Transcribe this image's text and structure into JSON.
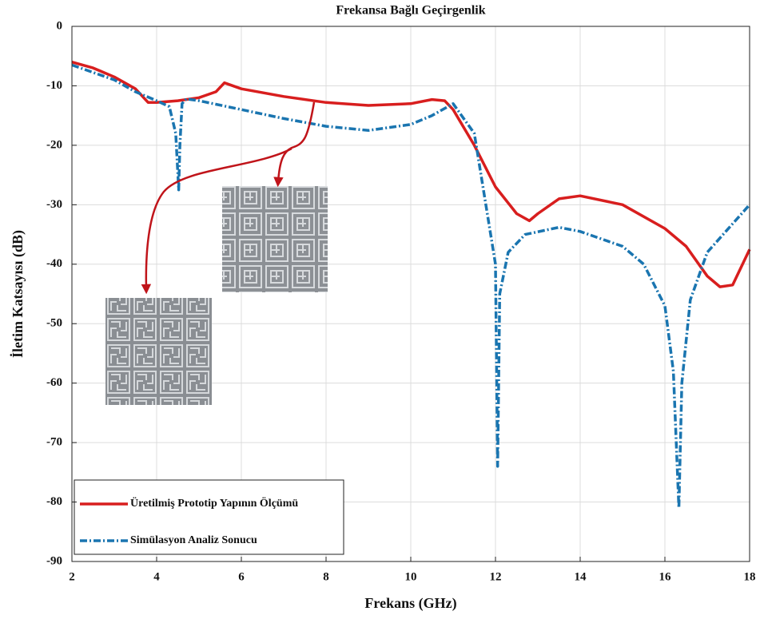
{
  "chart_data": {
    "type": "line",
    "title": "Frekansa Bağlı Geçirgenlik",
    "xlabel": "Frekans (GHz)",
    "ylabel": "İletim Katsayısı (dB)",
    "xlim": [
      2,
      18
    ],
    "ylim": [
      -90,
      0
    ],
    "xticks": [
      2,
      4,
      6,
      8,
      10,
      12,
      14,
      16,
      18
    ],
    "yticks": [
      -90,
      -80,
      -70,
      -60,
      -50,
      -40,
      -30,
      -20,
      -10,
      0
    ],
    "grid": true,
    "legend": "lower-left",
    "series": [
      {
        "name": "Üretilmiş Prototip Yapının Ölçümü",
        "color": "#d81e1e",
        "style": "solid",
        "x": [
          2,
          2.5,
          3,
          3.5,
          3.8,
          4,
          4.5,
          5,
          5.4,
          5.6,
          6,
          7,
          8,
          9,
          10,
          10.5,
          10.8,
          11,
          11.5,
          12,
          12.5,
          12.8,
          13,
          13.5,
          14,
          15,
          16,
          16.5,
          17,
          17.3,
          17.6,
          18
        ],
        "values": [
          -6,
          -7,
          -8.5,
          -10.5,
          -12.8,
          -12.8,
          -12.5,
          -12,
          -11,
          -9.5,
          -10.5,
          -11.8,
          -12.8,
          -13.3,
          -13,
          -12.3,
          -12.5,
          -14,
          -20,
          -27,
          -31.5,
          -32.7,
          -31.5,
          -29,
          -28.5,
          -30,
          -34,
          -37,
          -42,
          -43.8,
          -43.5,
          -37.5
        ]
      },
      {
        "name": "Simülasyon Analiz Sonucu",
        "color": "#1a75b0",
        "style": "dashdot",
        "x": [
          2,
          3,
          3.5,
          4,
          4.3,
          4.45,
          4.52,
          4.55,
          4.6,
          4.7,
          5,
          6,
          7,
          8,
          9,
          10,
          10.5,
          11,
          11.5,
          12,
          12.05,
          12.1,
          12.3,
          12.7,
          13.5,
          14,
          15,
          15.5,
          16,
          16.2,
          16.33,
          16.4,
          16.6,
          17,
          17.5,
          18
        ],
        "values": [
          -6.5,
          -9,
          -11,
          -12.5,
          -13.5,
          -18,
          -27.5,
          -20,
          -13,
          -12.2,
          -12.5,
          -14,
          -15.5,
          -16.8,
          -17.5,
          -16.5,
          -15,
          -13,
          -18,
          -40,
          -74,
          -45,
          -38,
          -35,
          -33.8,
          -34.5,
          -37,
          -40,
          -47,
          -58,
          -81,
          -60,
          -46,
          -38,
          -34,
          -30
        ]
      }
    ]
  }
}
